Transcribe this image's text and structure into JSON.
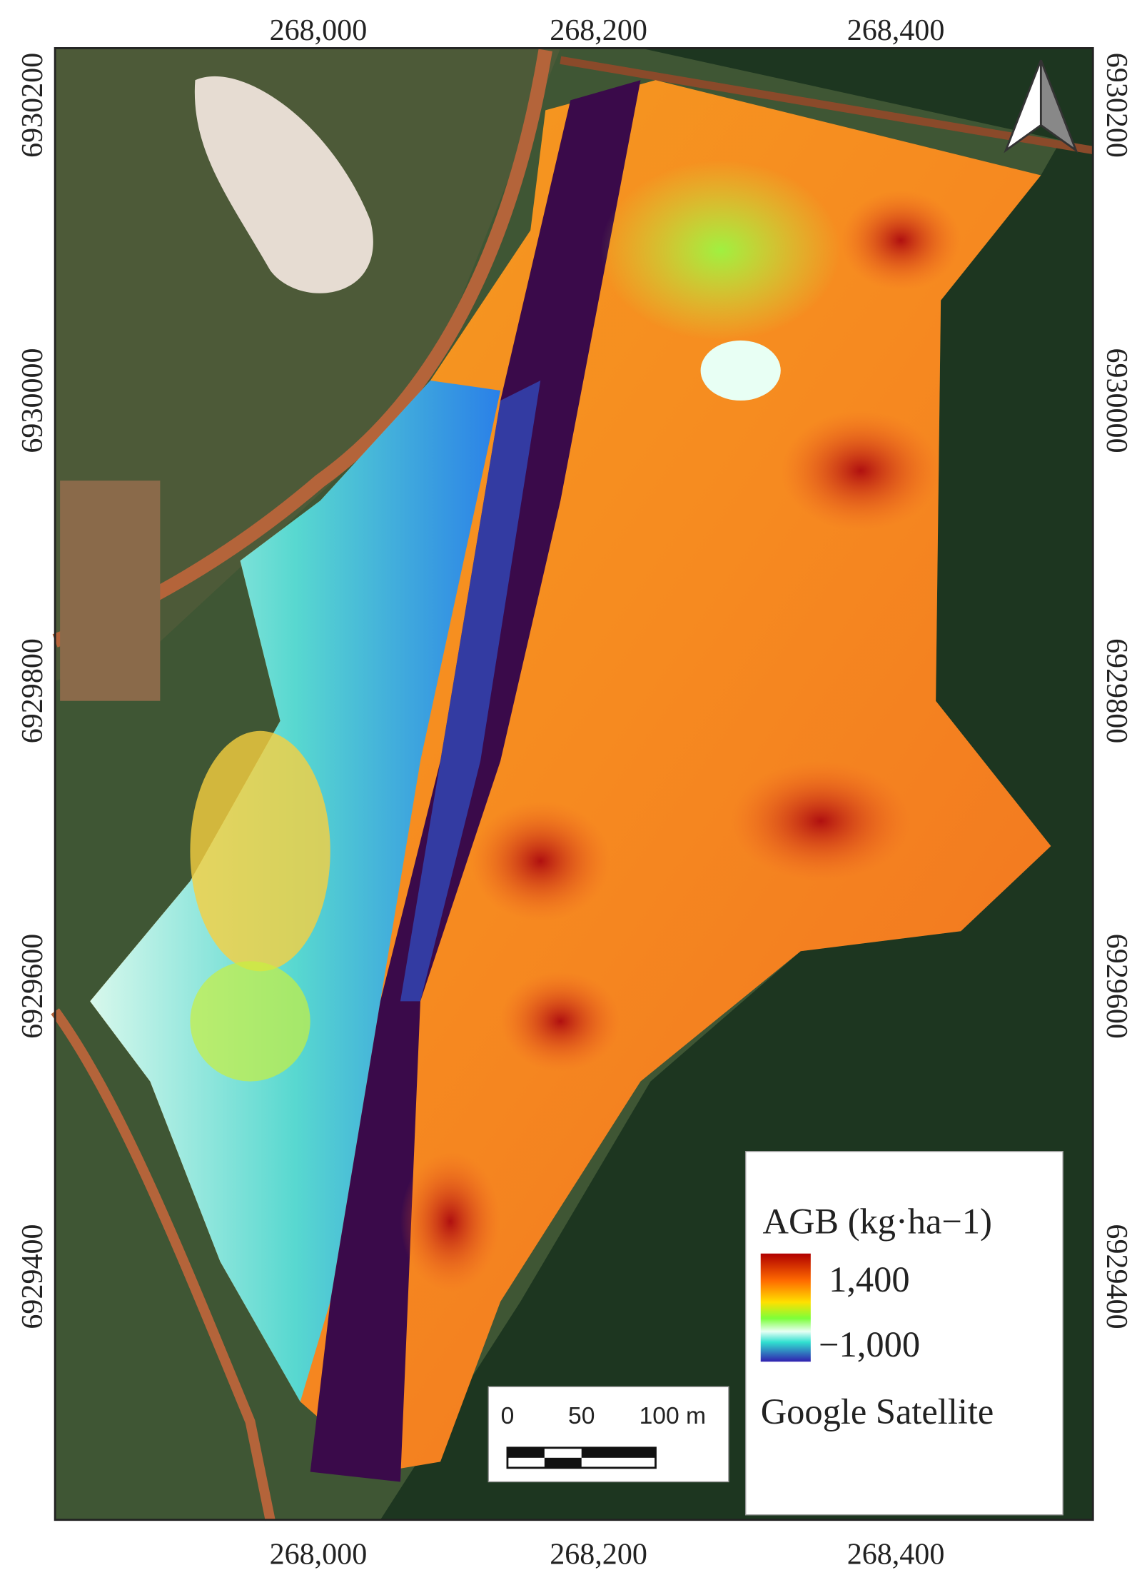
{
  "map": {
    "x_ticks": [
      "268,000",
      "268,200",
      "268,400"
    ],
    "y_ticks": [
      "6930200",
      "6930000",
      "6929800",
      "6929600",
      "6929400"
    ],
    "legend": {
      "title": "AGB (kg·ha−1)",
      "max_label": "1,400",
      "min_label": "−1,000",
      "basemap": "Google Satellite"
    },
    "scale_bar": {
      "labels": [
        "0",
        "50",
        "100 m"
      ]
    }
  }
}
